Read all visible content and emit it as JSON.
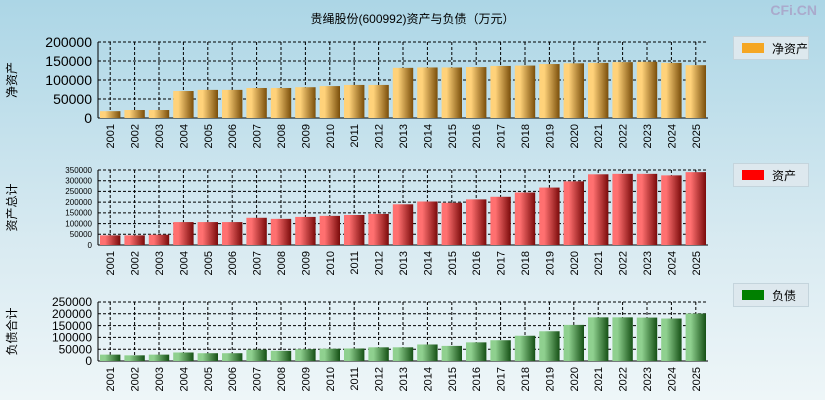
{
  "title": "贵绳股份(600992)资产与负债（万元）",
  "logo": "CFi.CN",
  "chart_data": [
    {
      "type": "bar",
      "ylabel": "净资产",
      "legend": "净资产",
      "color": "#f5a623",
      "ylim": [
        0,
        200000
      ],
      "yticks": [
        0,
        50000,
        100000,
        150000,
        200000
      ],
      "categories": [
        "2001",
        "2002",
        "2003",
        "2004",
        "2005",
        "2006",
        "2007",
        "2008",
        "2009",
        "2010",
        "2011",
        "2012",
        "2013",
        "2014",
        "2015",
        "2016",
        "2017",
        "2018",
        "2019",
        "2020",
        "2021",
        "2022",
        "2023",
        "2024",
        "2025"
      ],
      "values": [
        18000,
        21000,
        21000,
        71000,
        74000,
        74000,
        79000,
        79000,
        81000,
        84000,
        87000,
        87000,
        132000,
        133000,
        133000,
        134000,
        137000,
        138000,
        142000,
        144000,
        145000,
        147000,
        148000,
        145000,
        139000
      ]
    },
    {
      "type": "bar",
      "ylabel": "资产总计",
      "legend": "资产",
      "color": "#ee2222",
      "ylim": [
        0,
        350000
      ],
      "yticks": [
        0,
        50000,
        100000,
        150000,
        200000,
        250000,
        300000,
        350000
      ],
      "categories": [
        "2001",
        "2002",
        "2003",
        "2004",
        "2005",
        "2006",
        "2007",
        "2008",
        "2009",
        "2010",
        "2011",
        "2012",
        "2013",
        "2014",
        "2015",
        "2016",
        "2017",
        "2018",
        "2019",
        "2020",
        "2021",
        "2022",
        "2023",
        "2024",
        "2025"
      ],
      "values": [
        45000,
        45000,
        48000,
        107000,
        107000,
        107000,
        127000,
        122000,
        131000,
        136000,
        140000,
        145000,
        190000,
        203000,
        197000,
        213000,
        225000,
        245000,
        268000,
        297000,
        330000,
        332000,
        332000,
        325000,
        340000
      ]
    },
    {
      "type": "bar",
      "ylabel": "负债合计",
      "legend": "负债",
      "color": "#2e8b2e",
      "ylim": [
        0,
        250000
      ],
      "yticks": [
        0,
        50000,
        100000,
        150000,
        200000,
        250000
      ],
      "categories": [
        "2001",
        "2002",
        "2003",
        "2004",
        "2005",
        "2006",
        "2007",
        "2008",
        "2009",
        "2010",
        "2011",
        "2012",
        "2013",
        "2014",
        "2015",
        "2016",
        "2017",
        "2018",
        "2019",
        "2020",
        "2021",
        "2022",
        "2023",
        "2024",
        "2025"
      ],
      "values": [
        27000,
        24000,
        27000,
        36000,
        33000,
        33000,
        48000,
        43000,
        50000,
        52000,
        53000,
        58000,
        58000,
        70000,
        64000,
        79000,
        88000,
        107000,
        126000,
        153000,
        185000,
        185000,
        184000,
        180000,
        201000
      ]
    }
  ]
}
